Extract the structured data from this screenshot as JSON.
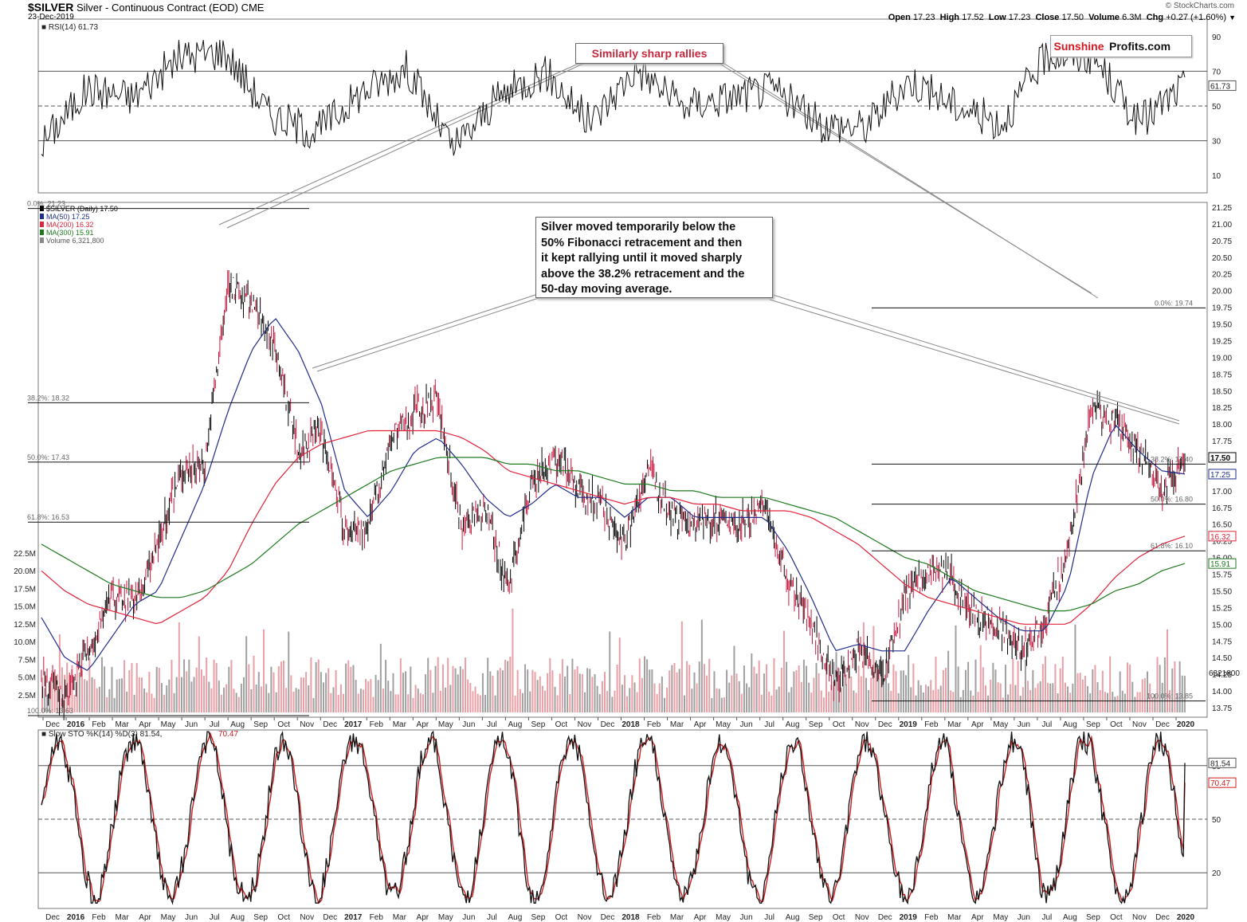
{
  "header": {
    "symbol": "$SILVER",
    "description": "Silver - Continuous Contract (EOD)",
    "exchange": "CME",
    "date": "23-Dec-2019",
    "quote": {
      "open": "17.23",
      "high": "17.52",
      "low": "17.23",
      "close": "17.50",
      "volume": "6.3M",
      "chg": "+0.27 (+1.60%)"
    },
    "credit": "© StockCharts.com"
  },
  "logo": {
    "part1": "Sunshine",
    "part2": "Profits.com"
  },
  "callouts": {
    "rallies": "Similarly sharp rallies",
    "fib_note": [
      "Silver moved temporarily below the",
      "50% Fibonacci retracement and then",
      "it kept rallying until it moved sharply",
      "above the 38.2% retracement and the",
      "50-day moving average."
    ]
  },
  "colors": {
    "price_up": "#000000",
    "price_down": "#c4163b",
    "ma50": "#1f2d8c",
    "ma200": "#e0233a",
    "ma300": "#1e7a1e",
    "vol_up": "#a0a0a0",
    "vol_down": "#e8a0a6",
    "accent": "#d51822",
    "rsi_over": "#4a7a3a",
    "rsi_under": "#8a4a4a"
  },
  "chart_data": [
    {
      "type": "line",
      "panel": "rsi",
      "label": "RSI(14) 61.73",
      "ylim": [
        0,
        100
      ],
      "y_ticks": [
        10,
        30,
        50,
        70,
        90
      ],
      "levels": [
        30,
        50,
        70
      ],
      "last_value": "61.73",
      "x": [
        "2015-11",
        "2016-01",
        "2016-03",
        "2016-05",
        "2016-07",
        "2016-09",
        "2016-11",
        "2017-01",
        "2017-03",
        "2017-05",
        "2017-07",
        "2017-09",
        "2017-11",
        "2018-01",
        "2018-03",
        "2018-05",
        "2018-07",
        "2018-09",
        "2018-11",
        "2019-01",
        "2019-03",
        "2019-05",
        "2019-07",
        "2019-09",
        "2019-11",
        "2019-12"
      ],
      "values": [
        28,
        60,
        55,
        78,
        82,
        45,
        35,
        58,
        72,
        25,
        55,
        70,
        40,
        72,
        50,
        55,
        60,
        40,
        38,
        65,
        50,
        40,
        80,
        78,
        40,
        62
      ]
    },
    {
      "type": "line",
      "panel": "price",
      "title": "$SILVER (Daily) 17.50",
      "legend": [
        {
          "name": "$SILVER (Daily) 17.50"
        },
        {
          "name": "MA(50) 17.25"
        },
        {
          "name": "MA(200) 16.32"
        },
        {
          "name": "MA(300) 15.91"
        },
        {
          "name": "Volume 6,321,800"
        }
      ],
      "ylim": [
        13.75,
        21.25
      ],
      "y_ticks": [
        13.75,
        14.0,
        14.25,
        14.5,
        14.75,
        15.0,
        15.25,
        15.5,
        15.75,
        16.0,
        16.25,
        16.5,
        16.75,
        17.0,
        17.25,
        17.5,
        17.75,
        18.0,
        18.25,
        18.5,
        18.75,
        19.0,
        19.25,
        19.5,
        19.75,
        20.0,
        20.25,
        20.5,
        20.75,
        21.0,
        21.25
      ],
      "last_labels": {
        "close": "17.50",
        "ma50": "17.25",
        "ma200": "16.32",
        "ma300": "15.91",
        "volume": "6321800"
      },
      "x": [
        "2015-11",
        "2015-12",
        "2016-01",
        "2016-02",
        "2016-03",
        "2016-04",
        "2016-05",
        "2016-06",
        "2016-07",
        "2016-08",
        "2016-09",
        "2016-10",
        "2016-11",
        "2016-12",
        "2017-01",
        "2017-02",
        "2017-03",
        "2017-04",
        "2017-05",
        "2017-06",
        "2017-07",
        "2017-08",
        "2017-09",
        "2017-10",
        "2017-11",
        "2017-12",
        "2018-01",
        "2018-02",
        "2018-03",
        "2018-04",
        "2018-05",
        "2018-06",
        "2018-07",
        "2018-08",
        "2018-09",
        "2018-10",
        "2018-11",
        "2018-12",
        "2019-01",
        "2019-02",
        "2019-03",
        "2019-04",
        "2019-05",
        "2019-06",
        "2019-07",
        "2019-08",
        "2019-09",
        "2019-10",
        "2019-11",
        "2019-12"
      ],
      "series": [
        {
          "name": "$SILVER (Daily) 17.50",
          "values": [
            14.2,
            13.9,
            14.6,
            15.4,
            15.3,
            16.2,
            17.3,
            17.4,
            20.1,
            19.8,
            19.2,
            17.6,
            17.9,
            16.4,
            16.4,
            17.8,
            18.2,
            18.3,
            16.4,
            16.8,
            15.5,
            17.1,
            17.5,
            17.0,
            16.8,
            16.2,
            17.4,
            16.6,
            16.5,
            16.6,
            16.5,
            16.8,
            15.6,
            15.0,
            14.1,
            14.7,
            14.2,
            15.4,
            15.8,
            15.7,
            15.1,
            15.0,
            14.6,
            15.1,
            16.1,
            18.3,
            18.0,
            17.6,
            17.0,
            17.5
          ]
        },
        {
          "name": "MA(50) 17.25",
          "values": [
            15.1,
            14.5,
            14.3,
            14.8,
            15.3,
            15.5,
            16.3,
            17.1,
            18.2,
            19.1,
            19.6,
            19.1,
            18.3,
            17.0,
            16.6,
            17.0,
            17.6,
            17.8,
            17.4,
            16.9,
            16.6,
            16.8,
            17.1,
            16.9,
            16.9,
            16.6,
            16.9,
            16.9,
            16.6,
            16.6,
            16.6,
            16.6,
            16.1,
            15.4,
            14.6,
            14.7,
            14.6,
            14.6,
            15.2,
            15.7,
            15.4,
            15.1,
            14.9,
            14.9,
            15.6,
            17.2,
            18.0,
            17.6,
            17.3,
            17.25
          ]
        },
        {
          "name": "MA(200) 16.32",
          "values": [
            15.8,
            15.5,
            15.3,
            15.2,
            15.1,
            15.0,
            15.2,
            15.4,
            15.8,
            16.5,
            17.1,
            17.5,
            17.7,
            17.8,
            17.9,
            17.9,
            17.9,
            17.9,
            17.8,
            17.6,
            17.3,
            17.2,
            17.1,
            17.0,
            16.9,
            16.8,
            16.9,
            16.9,
            16.8,
            16.8,
            16.7,
            16.7,
            16.7,
            16.6,
            16.4,
            16.2,
            15.9,
            15.6,
            15.4,
            15.3,
            15.2,
            15.1,
            15.0,
            15.0,
            15.0,
            15.3,
            15.7,
            16.0,
            16.2,
            16.32
          ]
        },
        {
          "name": "MA(300) 15.91",
          "values": [
            16.2,
            16.0,
            15.8,
            15.6,
            15.5,
            15.4,
            15.4,
            15.5,
            15.7,
            15.9,
            16.2,
            16.5,
            16.7,
            16.9,
            17.1,
            17.3,
            17.4,
            17.5,
            17.5,
            17.5,
            17.4,
            17.4,
            17.3,
            17.3,
            17.2,
            17.1,
            17.1,
            17.0,
            17.0,
            16.9,
            16.9,
            16.9,
            16.8,
            16.7,
            16.6,
            16.4,
            16.2,
            16.0,
            15.9,
            15.7,
            15.5,
            15.4,
            15.3,
            15.2,
            15.2,
            15.3,
            15.5,
            15.6,
            15.8,
            15.91
          ]
        }
      ],
      "fibonacci_2016": [
        {
          "label": "0.0%: 21.23",
          "value": 21.23
        },
        {
          "label": "38.2%: 18.32",
          "value": 18.32
        },
        {
          "label": "50.0%: 17.43",
          "value": 17.43
        },
        {
          "label": "61.8%: 16.53",
          "value": 16.53
        },
        {
          "label": "100.0%: 13.63",
          "value": 13.63
        }
      ],
      "fibonacci_2019": [
        {
          "label": "0.0%: 19.74",
          "value": 19.74
        },
        {
          "label": "38.2%: 17.40",
          "value": 17.4
        },
        {
          "label": "50.0%: 16.80",
          "value": 16.8
        },
        {
          "label": "61.8%: 16.10",
          "value": 16.1
        },
        {
          "label": "100.0%: 13.85",
          "value": 13.85
        }
      ]
    },
    {
      "type": "bar",
      "panel": "volume",
      "y_ticks": [
        "2.5M",
        "5.0M",
        "7.5M",
        "10.0M",
        "12.5M",
        "15.0M",
        "17.5M",
        "20.0M",
        "22.5M"
      ],
      "ylim": [
        0,
        22.5
      ],
      "unit": "M",
      "last_value": 6.3
    },
    {
      "type": "line",
      "panel": "stochastic",
      "label": "Slow STO %K(14) %D(3) 81.54, 70.47",
      "label_k": "Slow STO %K(14) %D(3) 81.54,",
      "label_d": "70.47",
      "ylim": [
        0,
        100
      ],
      "y_ticks": [
        20,
        50,
        80
      ],
      "levels": [
        20,
        50,
        80
      ],
      "last_labels": {
        "k": "81.54",
        "d": "70.47"
      },
      "series": [
        {
          "name": "%K",
          "last": 81.54
        },
        {
          "name": "%D",
          "last": 70.47
        }
      ]
    }
  ],
  "x_axis": {
    "labels": [
      {
        "t": "Dec",
        "b": false
      },
      {
        "t": "2016",
        "b": true
      },
      {
        "t": "Feb",
        "b": false
      },
      {
        "t": "Mar",
        "b": false
      },
      {
        "t": "Apr",
        "b": false
      },
      {
        "t": "May",
        "b": false
      },
      {
        "t": "Jun",
        "b": false
      },
      {
        "t": "Jul",
        "b": false
      },
      {
        "t": "Aug",
        "b": false
      },
      {
        "t": "Sep",
        "b": false
      },
      {
        "t": "Oct",
        "b": false
      },
      {
        "t": "Nov",
        "b": false
      },
      {
        "t": "Dec",
        "b": false
      },
      {
        "t": "2017",
        "b": true
      },
      {
        "t": "Feb",
        "b": false
      },
      {
        "t": "Mar",
        "b": false
      },
      {
        "t": "Apr",
        "b": false
      },
      {
        "t": "May",
        "b": false
      },
      {
        "t": "Jun",
        "b": false
      },
      {
        "t": "Jul",
        "b": false
      },
      {
        "t": "Aug",
        "b": false
      },
      {
        "t": "Sep",
        "b": false
      },
      {
        "t": "Oct",
        "b": false
      },
      {
        "t": "Nov",
        "b": false
      },
      {
        "t": "Dec",
        "b": false
      },
      {
        "t": "2018",
        "b": true
      },
      {
        "t": "Feb",
        "b": false
      },
      {
        "t": "Mar",
        "b": false
      },
      {
        "t": "Apr",
        "b": false
      },
      {
        "t": "May",
        "b": false
      },
      {
        "t": "Jun",
        "b": false
      },
      {
        "t": "Jul",
        "b": false
      },
      {
        "t": "Aug",
        "b": false
      },
      {
        "t": "Sep",
        "b": false
      },
      {
        "t": "Oct",
        "b": false
      },
      {
        "t": "Nov",
        "b": false
      },
      {
        "t": "Dec",
        "b": false
      },
      {
        "t": "2019",
        "b": true
      },
      {
        "t": "Feb",
        "b": false
      },
      {
        "t": "Mar",
        "b": false
      },
      {
        "t": "Apr",
        "b": false
      },
      {
        "t": "May",
        "b": false
      },
      {
        "t": "Jun",
        "b": false
      },
      {
        "t": "Jul",
        "b": false
      },
      {
        "t": "Aug",
        "b": false
      },
      {
        "t": "Sep",
        "b": false
      },
      {
        "t": "Oct",
        "b": false
      },
      {
        "t": "Nov",
        "b": false
      },
      {
        "t": "Dec",
        "b": false
      },
      {
        "t": "2020",
        "b": true
      }
    ]
  }
}
